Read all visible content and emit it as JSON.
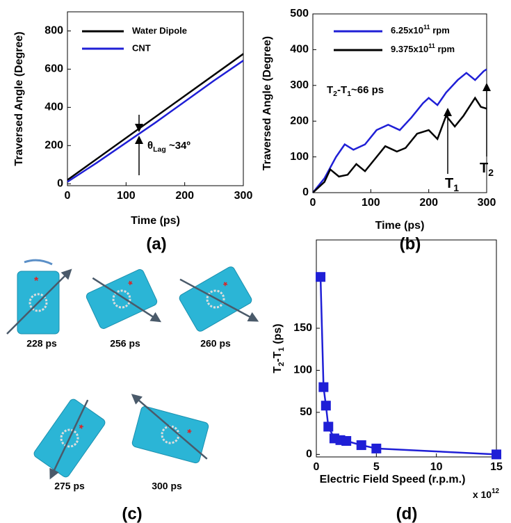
{
  "chart_data": [
    {
      "type": "line",
      "xlabel": "Time (ps)",
      "ylabel": "Traversed Angle (Degree)",
      "panel": "(a)",
      "xlim": [
        0,
        300
      ],
      "ylim": [
        -10,
        900
      ],
      "xticks": [
        0,
        100,
        200,
        300
      ],
      "yticks": [
        0,
        200,
        400,
        600,
        800
      ],
      "series": [
        {
          "name": "Water Dipole",
          "color": "#000000",
          "x": [
            0,
            300
          ],
          "values": [
            20,
            680
          ]
        },
        {
          "name": "CNT",
          "color": "#1f1fd6",
          "x": [
            0,
            50,
            100,
            150,
            200,
            250,
            300
          ],
          "values": [
            10,
            110,
            215,
            320,
            430,
            540,
            645
          ]
        }
      ],
      "annotation": [
        "θ",
        "Lag",
        " ~34º"
      ]
    },
    {
      "type": "line",
      "xlabel": "Time (ps)",
      "ylabel": "Traversed Angle (Degree)",
      "panel": "(b)",
      "xlim": [
        0,
        300
      ],
      "ylim": [
        0,
        500
      ],
      "xticks": [
        0,
        100,
        200,
        300
      ],
      "yticks": [
        0,
        100,
        200,
        300,
        400,
        500
      ],
      "series": [
        {
          "name": [
            "6.25x10",
            "11",
            " rpm"
          ],
          "color": "#1f1fd6",
          "x": [
            0,
            20,
            40,
            55,
            70,
            90,
            110,
            130,
            150,
            170,
            190,
            200,
            215,
            230,
            250,
            265,
            280,
            295,
            300
          ],
          "values": [
            0,
            40,
            100,
            135,
            120,
            135,
            175,
            190,
            175,
            210,
            250,
            265,
            245,
            280,
            315,
            335,
            315,
            340,
            345
          ]
        },
        {
          "name": [
            "9.375x10",
            "11",
            " rpm"
          ],
          "color": "#000000",
          "x": [
            0,
            20,
            30,
            45,
            60,
            75,
            90,
            110,
            125,
            145,
            160,
            180,
            200,
            215,
            230,
            245,
            260,
            280,
            290,
            300
          ],
          "values": [
            0,
            30,
            65,
            45,
            50,
            80,
            60,
            100,
            130,
            115,
            125,
            165,
            175,
            150,
            215,
            185,
            215,
            265,
            240,
            235
          ]
        }
      ],
      "annotation": [
        "T",
        "2",
        "-T",
        "1",
        "~66 ps"
      ],
      "marker1": [
        "T",
        "1"
      ],
      "marker2": [
        "T",
        "2"
      ]
    },
    {
      "type": "figure",
      "panel": "(c)",
      "captions": [
        "228 ps",
        "256 ps",
        "260 ps",
        "275 ps",
        "300 ps"
      ]
    },
    {
      "type": "scatter",
      "xlabel": "Electric Field Speed (r.p.m.)",
      "ylabel": [
        "T",
        "2",
        "-T",
        "1",
        " (ps)"
      ],
      "panel": "(d)",
      "xmultiplier": [
        "x 10",
        "12"
      ],
      "color": "#1f1fd6",
      "xlim": [
        0,
        15
      ],
      "ylim": [
        -3,
        255
      ],
      "xticks": [
        0,
        5,
        10,
        15
      ],
      "yticks": [
        0,
        50,
        100,
        150
      ],
      "x": [
        0.35,
        0.6,
        0.8,
        1.0,
        1.5,
        2.0,
        2.5,
        3.75,
        5.0,
        15
      ],
      "values": [
        211,
        80,
        58,
        33,
        19,
        17,
        16,
        11,
        7,
        0
      ]
    }
  ]
}
